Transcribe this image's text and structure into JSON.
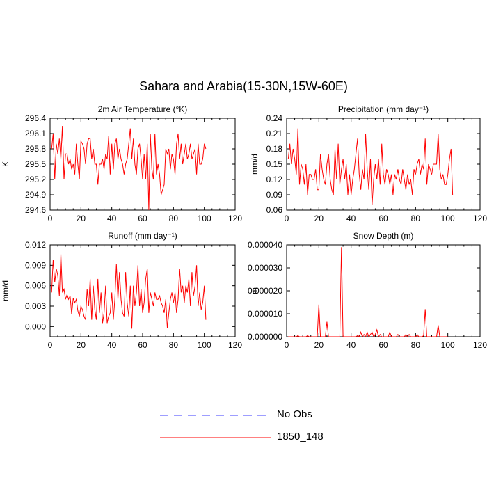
{
  "title": "Sahara and Arabia(15-30N,15W-60E)",
  "colors": {
    "model": "#ff0000",
    "obs": "#3c3cff",
    "axis": "#000000"
  },
  "legend": [
    {
      "label": "No Obs",
      "style": "dashed",
      "color": "#3c3cff"
    },
    {
      "label": "1850_148",
      "style": "solid",
      "color": "#ff0000"
    }
  ],
  "chart_data": [
    {
      "type": "line",
      "title": "2m Air Temperature (°K)",
      "xlabel": "",
      "ylabel": "K",
      "xlim": [
        0,
        120
      ],
      "xticks": [
        0,
        20,
        40,
        60,
        80,
        100,
        120
      ],
      "ylim": [
        294.6,
        296.4
      ],
      "yticks": [
        "294.6",
        "294.9",
        "295.2",
        "295.5",
        "295.8",
        "296.1",
        "296.4"
      ],
      "series": [
        {
          "name": "1850_148",
          "color": "#ff0000",
          "x_start": 1,
          "values": [
            295.8,
            296.1,
            295.2,
            295.9,
            295.7,
            296.0,
            295.6,
            296.25,
            295.2,
            295.7,
            295.7,
            295.5,
            295.6,
            295.4,
            295.5,
            295.3,
            295.9,
            295.5,
            295.2,
            295.95,
            295.9,
            295.8,
            295.5,
            295.9,
            296.0,
            296.0,
            295.6,
            295.8,
            295.5,
            295.5,
            295.1,
            295.5,
            295.5,
            295.6,
            295.4,
            295.7,
            295.6,
            296.05,
            295.3,
            295.9,
            295.4,
            295.9,
            296.0,
            295.6,
            295.8,
            295.6,
            295.5,
            295.3,
            295.5,
            295.6,
            295.9,
            296.2,
            295.6,
            296.0,
            295.5,
            295.3,
            295.8,
            295.9,
            295.6,
            295.2,
            295.7,
            295.2,
            295.9,
            294.6,
            296.1,
            295.4,
            295.2,
            296.1,
            295.3,
            295.5,
            295.3,
            294.9,
            295.0,
            295.1,
            295.8,
            295.7,
            295.8,
            295.4,
            295.7,
            295.6,
            295.3,
            295.9,
            296.1,
            295.6,
            295.9,
            295.5,
            295.7,
            295.9,
            295.6,
            295.7,
            295.9,
            295.6,
            295.7,
            295.8,
            295.3,
            295.9,
            295.5,
            295.5,
            295.6,
            295.9,
            295.8
          ]
        }
      ]
    },
    {
      "type": "line",
      "title": "Precipitation (mm day⁻¹)",
      "xlabel": "",
      "ylabel": "mm/d",
      "xlim": [
        0,
        120
      ],
      "xticks": [
        0,
        20,
        40,
        60,
        80,
        100,
        120
      ],
      "ylim": [
        0.06,
        0.24
      ],
      "yticks": [
        "0.06",
        "0.09",
        "0.12",
        "0.15",
        "0.18",
        "0.21",
        "0.24"
      ],
      "series": [
        {
          "name": "1850_148",
          "color": "#ff0000",
          "x_start": 1,
          "values": [
            0.16,
            0.19,
            0.15,
            0.18,
            0.16,
            0.13,
            0.22,
            0.11,
            0.15,
            0.14,
            0.11,
            0.15,
            0.09,
            0.13,
            0.13,
            0.12,
            0.12,
            0.14,
            0.1,
            0.1,
            0.17,
            0.14,
            0.12,
            0.11,
            0.15,
            0.17,
            0.12,
            0.1,
            0.09,
            0.18,
            0.12,
            0.19,
            0.11,
            0.14,
            0.16,
            0.12,
            0.15,
            0.09,
            0.13,
            0.09,
            0.12,
            0.14,
            0.17,
            0.2,
            0.13,
            0.1,
            0.14,
            0.12,
            0.21,
            0.14,
            0.1,
            0.16,
            0.07,
            0.12,
            0.15,
            0.12,
            0.16,
            0.11,
            0.19,
            0.13,
            0.11,
            0.14,
            0.13,
            0.11,
            0.13,
            0.09,
            0.13,
            0.12,
            0.14,
            0.12,
            0.11,
            0.14,
            0.12,
            0.1,
            0.13,
            0.11,
            0.12,
            0.09,
            0.14,
            0.13,
            0.15,
            0.16,
            0.13,
            0.15,
            0.14,
            0.2,
            0.11,
            0.15,
            0.14,
            0.13,
            0.15,
            0.15,
            0.15,
            0.21,
            0.14,
            0.12,
            0.13,
            0.11,
            0.11,
            0.13,
            0.16,
            0.18,
            0.09
          ]
        }
      ]
    },
    {
      "type": "line",
      "title": "Runoff (mm day⁻¹)",
      "xlabel": "",
      "ylabel": "mm/d",
      "xlim": [
        0,
        120
      ],
      "xticks": [
        0,
        20,
        40,
        60,
        80,
        100,
        120
      ],
      "ylim": [
        -0.0015,
        0.012
      ],
      "yticks": [
        "0.000",
        "0.003",
        "0.006",
        "0.009",
        "0.012"
      ],
      "ytick_values": [
        0,
        0.003,
        0.006,
        0.009,
        0.012
      ],
      "series": [
        {
          "name": "1850_148",
          "color": "#ff0000",
          "x_start": 1,
          "values": [
            0.005,
            0.0098,
            0.0065,
            0.0085,
            0.0075,
            0.0045,
            0.0107,
            0.005,
            0.0055,
            0.004,
            0.0047,
            0.004,
            0.0045,
            0.0018,
            0.0042,
            0.0035,
            0.004,
            0.0023,
            0.0015,
            0.003,
            0.0025,
            0.0015,
            0.001,
            0.0055,
            0.003,
            0.007,
            0.001,
            0.006,
            0.0025,
            0.001,
            0.007,
            0.002,
            0.005,
            0.0005,
            0.002,
            0.006,
            0.0005,
            0.0015,
            0.002,
            0.005,
            0.001,
            0.004,
            0.0092,
            0.004,
            0.008,
            0.004,
            0.002,
            0.0015,
            0.008,
            0.0035,
            0.0015,
            0.006,
            -0.0003,
            0.006,
            0.003,
            0.005,
            0.009,
            0.003,
            0.0055,
            0.002,
            0.0035,
            0.007,
            0.0085,
            0.002,
            0.005,
            0.004,
            0.003,
            0.005,
            0.004,
            0.004,
            0.0045,
            0.0035,
            0.003,
            0.002,
            0.004,
            -0.0002,
            0.002,
            0.004,
            0.005,
            0.0035,
            0.005,
            0.002,
            0.004,
            0.0085,
            0.005,
            0.006,
            0.0035,
            0.006,
            0.005,
            0.007,
            0.003,
            0.008,
            0.0045,
            0.006,
            0.009,
            0.003,
            0.005,
            0.0025,
            0.0035,
            0.006,
            0.001
          ]
        }
      ]
    },
    {
      "type": "line",
      "title": "Snow Depth (m)",
      "xlabel": "",
      "ylabel": "m",
      "xlim": [
        0,
        120
      ],
      "xticks": [
        0,
        20,
        40,
        60,
        80,
        100,
        120
      ],
      "ylim": [
        0,
        4e-05
      ],
      "yticks": [
        "0.000000",
        "0.000010",
        "0.000020",
        "0.000030",
        "0.000040"
      ],
      "ytick_values": [
        0,
        1e-05,
        2e-05,
        3e-05,
        4e-05
      ],
      "series": [
        {
          "name": "1850_148",
          "color": "#ff0000",
          "x_start": 1,
          "values": [
            0,
            0,
            0,
            0,
            0,
            0,
            5e-07,
            0,
            0,
            0,
            0,
            0,
            5e-07,
            0,
            0,
            0,
            0,
            0,
            0,
            1.4e-05,
            0,
            0,
            0,
            0,
            6.5e-06,
            0,
            0,
            0,
            0,
            0,
            0,
            0,
            0,
            3.9e-05,
            0,
            0,
            0,
            0,
            0,
            0,
            0,
            0,
            0,
            5e-07,
            0,
            2e-06,
            0,
            1e-06,
            0,
            2e-06,
            0,
            1e-06,
            2e-06,
            0,
            1e-06,
            3e-06,
            0,
            1e-06,
            0,
            0,
            0,
            0,
            0,
            2e-06,
            0,
            0,
            0,
            0,
            1e-06,
            0,
            0,
            0,
            0,
            1e-06,
            0,
            1e-06,
            0,
            0,
            0,
            0,
            1e-06,
            0,
            0,
            0,
            5e-07,
            1.2e-05,
            0,
            0,
            0,
            0,
            0,
            0,
            0,
            5e-06,
            0,
            0,
            0,
            0,
            0,
            0
          ]
        }
      ]
    }
  ]
}
